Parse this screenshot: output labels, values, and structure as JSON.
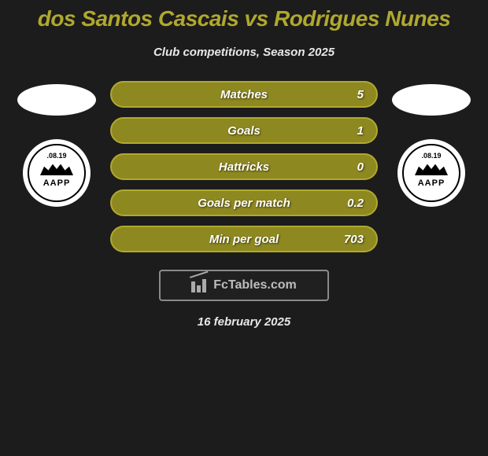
{
  "title": "dos Santos Cascais vs Rodrigues Nunes",
  "subtitle": "Club competitions, Season 2025",
  "date": "16 february 2025",
  "colors": {
    "accent": "#b0a82e",
    "stat_border": "#b0a82e",
    "stat_fill": "#8e8820",
    "ellipse_left": "#ffffff",
    "ellipse_right": "#ffffff",
    "background": "#1c1c1c"
  },
  "left_team": {
    "badge_top_text": ".08.19",
    "badge_main_text": "AAPP"
  },
  "right_team": {
    "badge_top_text": ".08.19",
    "badge_main_text": "AAPP"
  },
  "stats": [
    {
      "label": "Matches",
      "value": "5"
    },
    {
      "label": "Goals",
      "value": "1"
    },
    {
      "label": "Hattricks",
      "value": "0"
    },
    {
      "label": "Goals per match",
      "value": "0.2"
    },
    {
      "label": "Min per goal",
      "value": "703"
    }
  ],
  "watermark": "FcTables.com"
}
